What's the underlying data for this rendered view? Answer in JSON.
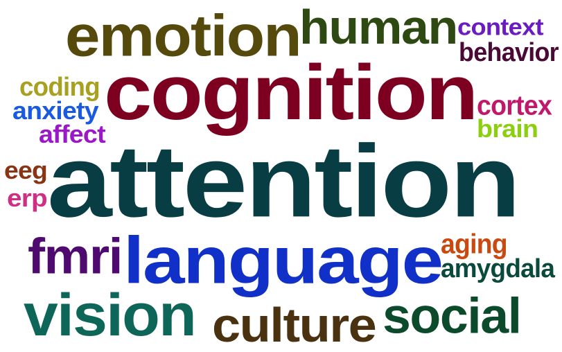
{
  "words": [
    {
      "id": "attention",
      "text": "attention",
      "color": "#083d44"
    },
    {
      "id": "cognition",
      "text": "cognition",
      "color": "#7d0020"
    },
    {
      "id": "language",
      "text": "language",
      "color": "#1030c8"
    },
    {
      "id": "emotion",
      "text": "emotion",
      "color": "#55490c"
    },
    {
      "id": "human",
      "text": "human",
      "color": "#2e4a12"
    },
    {
      "id": "vision",
      "text": "vision",
      "color": "#0e6658"
    },
    {
      "id": "culture",
      "text": "culture",
      "color": "#4a3210"
    },
    {
      "id": "social",
      "text": "social",
      "color": "#0c4a2c"
    },
    {
      "id": "fmri",
      "text": "fmri",
      "color": "#4e0a6e"
    },
    {
      "id": "context",
      "text": "context",
      "color": "#6a1cc0"
    },
    {
      "id": "behavior",
      "text": "behavior",
      "color": "#4a0a36"
    },
    {
      "id": "cortex",
      "text": "cortex",
      "color": "#c0186a"
    },
    {
      "id": "brain",
      "text": "brain",
      "color": "#8ccf10"
    },
    {
      "id": "coding",
      "text": "coding",
      "color": "#a8a020"
    },
    {
      "id": "anxiety",
      "text": "anxiety",
      "color": "#1a5ae0"
    },
    {
      "id": "affect",
      "text": "affect",
      "color": "#9a18c8"
    },
    {
      "id": "eeg",
      "text": "eeg",
      "color": "#8a3414"
    },
    {
      "id": "erp",
      "text": "erp",
      "color": "#d02e82"
    },
    {
      "id": "aging",
      "text": "aging",
      "color": "#c84a10"
    },
    {
      "id": "amygdala",
      "text": "amygdala",
      "color": "#0a4a3c"
    }
  ]
}
